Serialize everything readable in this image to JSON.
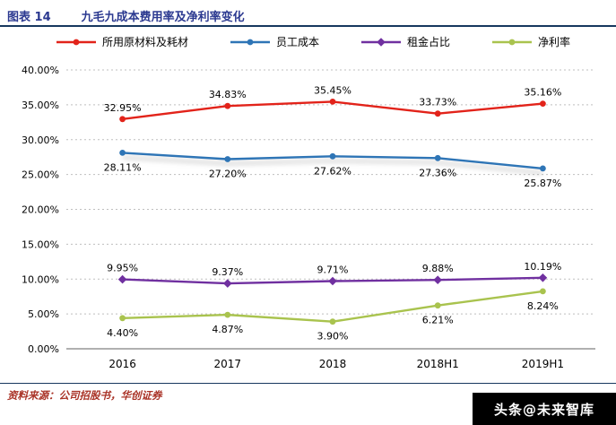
{
  "header": {
    "tag": "图表 14",
    "title": "九毛九成本费用率及净利率变化"
  },
  "chart_data": {
    "type": "line",
    "title": "九毛九成本费用率及净利率变化",
    "categories": [
      "2016",
      "2017",
      "2018",
      "2018H1",
      "2019H1"
    ],
    "series": [
      {
        "name": "所用原材料及耗材",
        "color": "#E2231A",
        "marker": "circle",
        "values": [
          32.95,
          34.83,
          35.45,
          33.73,
          35.16
        ],
        "label_position": "above"
      },
      {
        "name": "员工成本",
        "color": "#2E75B6",
        "marker": "circle",
        "values": [
          28.11,
          27.2,
          27.62,
          27.36,
          25.87
        ],
        "label_position": "below",
        "shadow": true
      },
      {
        "name": "租金占比",
        "color": "#7030A0",
        "marker": "diamond",
        "values": [
          9.95,
          9.37,
          9.71,
          9.88,
          10.19
        ],
        "label_position": "above"
      },
      {
        "name": "净利率",
        "color": "#A9C34E",
        "marker": "circle",
        "values": [
          4.4,
          4.87,
          3.9,
          6.21,
          8.24
        ],
        "label_position": "below"
      }
    ],
    "xlabel": "",
    "ylabel": "",
    "ylim": [
      0,
      40
    ],
    "ytick_step": 5,
    "ytick_decimals": 2,
    "ytick_suffix": "%",
    "grid": "horizontal-dotted",
    "legend_position": "top"
  },
  "footer": {
    "source": "资料来源：公司招股书，华创证券"
  },
  "watermark": {
    "text": "头条@未来智库"
  }
}
